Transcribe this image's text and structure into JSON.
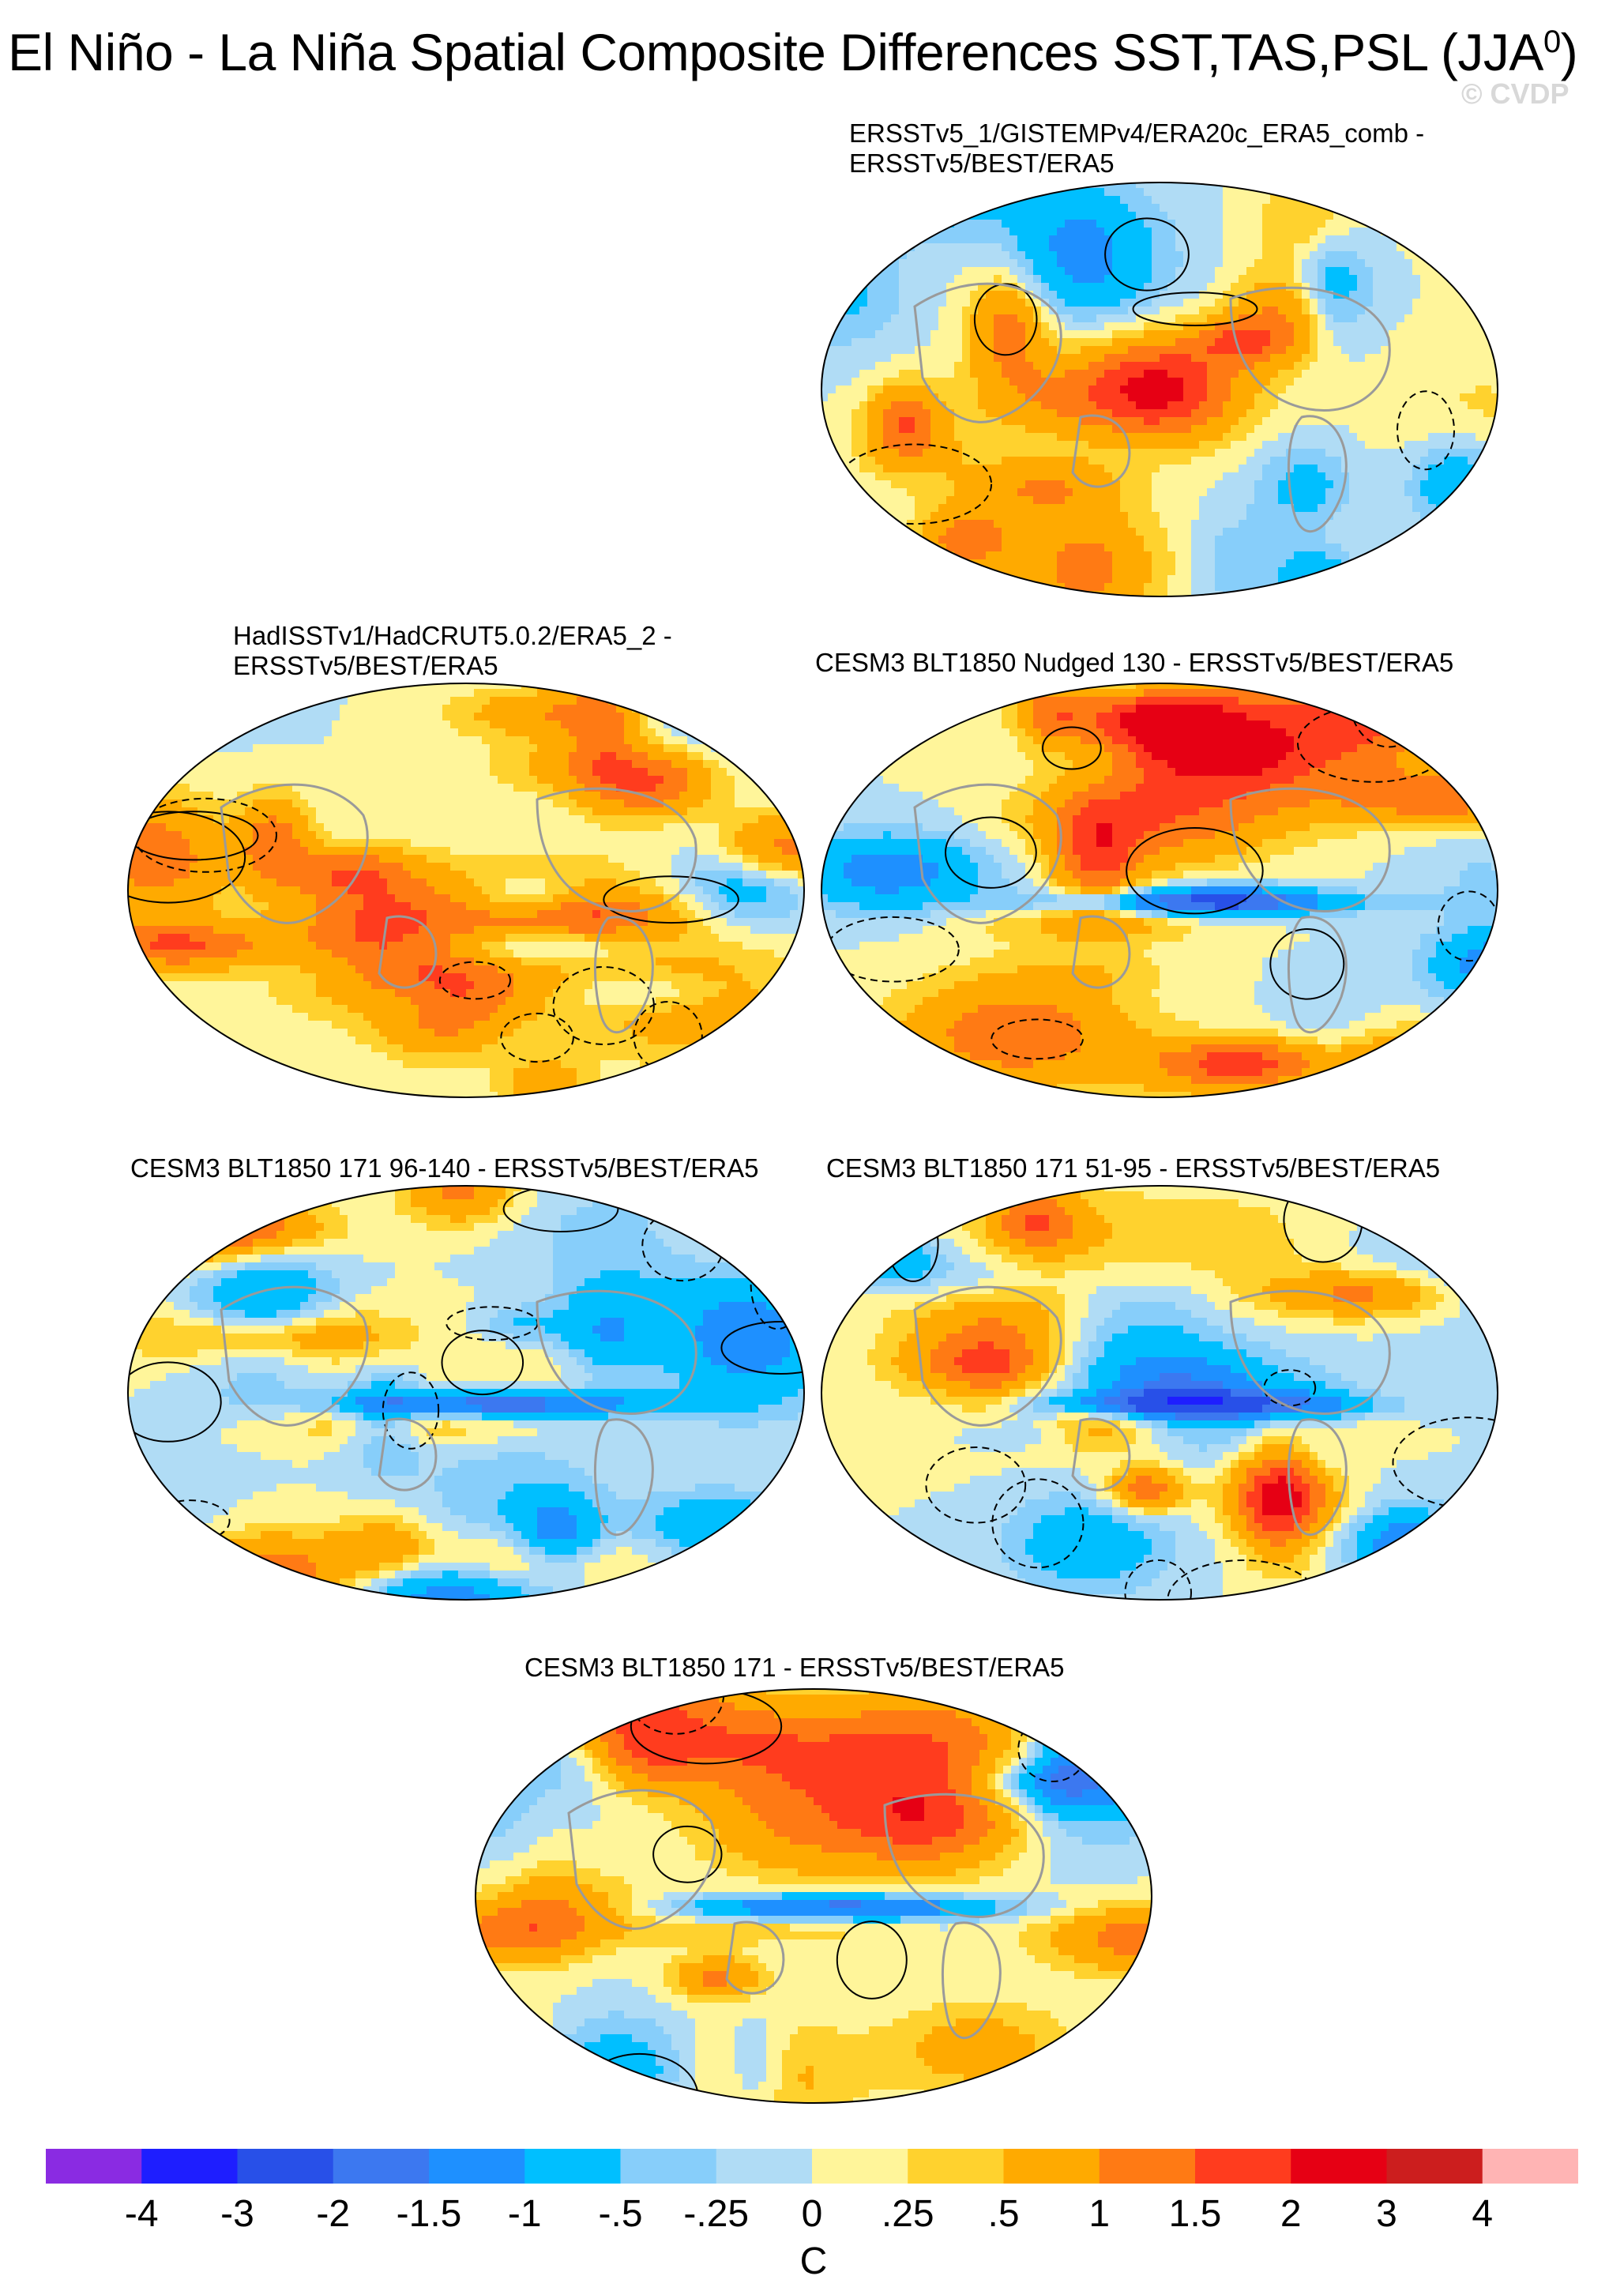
{
  "title": {
    "main": "El Niño - La Niña Spatial Composite Differences SST,TAS,PSL (JJA",
    "sup": "0",
    "close": ")"
  },
  "watermark": "© CVDP",
  "panels": [
    {
      "title_lines": [
        "ERSSTv5_1/GISTEMPv4/ERA20c_ERA5_comb -",
        "ERSSTv5/BEST/ERA5"
      ],
      "seed": 11
    },
    {
      "title_lines": [
        "HadISSTv1/HadCRUT5.0.2/ERA5_2 -",
        "ERSSTv5/BEST/ERA5"
      ],
      "seed": 23
    },
    {
      "title_lines": [
        "CESM3 BLT1850 Nudged 130 - ERSSTv5/BEST/ERA5"
      ],
      "seed": 37
    },
    {
      "title_lines": [
        "CESM3 BLT1850 171 96-140 - ERSSTv5/BEST/ERA5"
      ],
      "seed": 41
    },
    {
      "title_lines": [
        "CESM3 BLT1850 171 51-95 - ERSSTv5/BEST/ERA5"
      ],
      "seed": 53
    },
    {
      "title_lines": [
        "CESM3 BLT1850 171 - ERSSTv5/BEST/ERA5"
      ],
      "seed": 67
    }
  ],
  "chart_data": {
    "type": "heatmap",
    "title": "El Niño - La Niña Spatial Composite Differences SST,TAS,PSL (JJA0)",
    "variables": [
      "SST",
      "TAS",
      "PSL"
    ],
    "projection": "global map",
    "colorbar": {
      "unit": "C",
      "levels": [
        -4,
        -3,
        -2,
        -1.5,
        -1,
        -0.5,
        -0.25,
        0,
        0.25,
        0.5,
        1,
        1.5,
        2,
        3,
        4
      ],
      "tick_labels": [
        "-4",
        "-3",
        "-2",
        "-1.5",
        "-1",
        "-.5",
        "-.25",
        "0",
        ".25",
        ".5",
        "1",
        "1.5",
        "2",
        "3",
        "4"
      ],
      "colors": [
        "#8a2be2",
        "#1e1eff",
        "#2850e8",
        "#3c78f0",
        "#1e90ff",
        "#00bfff",
        "#87cefa",
        "#b0dcf5",
        "#fff59a",
        "#ffd22e",
        "#ffaa00",
        "#ff7a14",
        "#ff3c1e",
        "#e60014",
        "#cc1e1e",
        "#ffb4b4"
      ]
    },
    "panels": [
      "ERSSTv5_1/GISTEMPv4/ERA20c_ERA5_comb - ERSSTv5/BEST/ERA5",
      "HadISSTv1/HadCRUT5.0.2/ERA5_2 - ERSSTv5/BEST/ERA5",
      "CESM3 BLT1850 Nudged 130 - ERSSTv5/BEST/ERA5",
      "CESM3 BLT1850 171 96-140 - ERSSTv5/BEST/ERA5",
      "CESM3 BLT1850 171 51-95 - ERSSTv5/BEST/ERA5",
      "CESM3 BLT1850 171 - ERSSTv5/BEST/ERA5"
    ]
  }
}
